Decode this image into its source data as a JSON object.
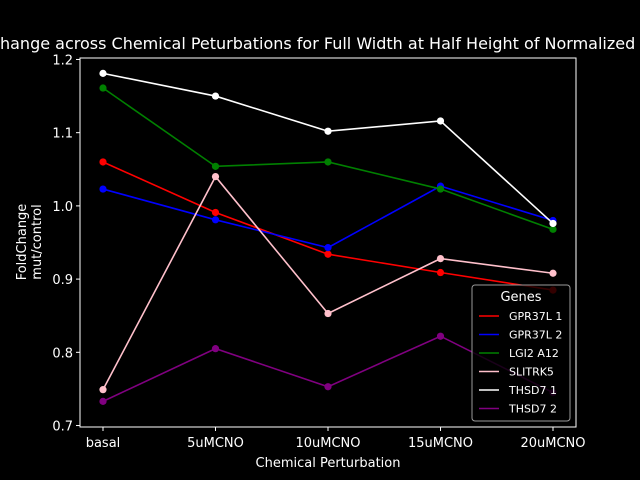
{
  "chart_data": {
    "type": "line",
    "title": "FoldChange across Chemical Peturbations for Full Width at Half Height of Normalized Cross",
    "xlabel": "Chemical Perturbation",
    "ylabel": "FoldChange\nmut/control",
    "categories": [
      "basal",
      "5uMCNO",
      "10uMCNO",
      "15uMCNO",
      "20uMCNO"
    ],
    "ylim": [
      0.698,
      1.202
    ],
    "yticks": [
      0.7,
      0.8,
      0.9,
      1.0,
      1.1,
      1.2
    ],
    "ytick_labels": [
      "0.7",
      "0.8",
      "0.9",
      "1.0",
      "1.1",
      "1.2"
    ],
    "grid": false,
    "legend": {
      "title": "Genes",
      "placement": "lower-right"
    },
    "series": [
      {
        "name": "GPR37L 1",
        "color": "#ff0000",
        "values": [
          1.06,
          0.991,
          0.934,
          0.909,
          0.885
        ]
      },
      {
        "name": "GPR37L 2",
        "color": "#0000ff",
        "values": [
          1.023,
          0.981,
          0.943,
          1.027,
          0.98
        ]
      },
      {
        "name": "LGI2 A12",
        "color": "#008000",
        "values": [
          1.161,
          1.054,
          1.06,
          1.023,
          0.968
        ]
      },
      {
        "name": "SLITRK5",
        "color": "#ffc0cb",
        "values": [
          0.749,
          1.04,
          0.853,
          0.928,
          0.908
        ]
      },
      {
        "name": "THSD7 1",
        "color": "#ffffff",
        "values": [
          1.181,
          1.15,
          1.102,
          1.116,
          0.976
        ]
      },
      {
        "name": "THSD7 2",
        "color": "#800080",
        "values": [
          0.733,
          0.805,
          0.753,
          0.822,
          0.745
        ]
      }
    ]
  }
}
